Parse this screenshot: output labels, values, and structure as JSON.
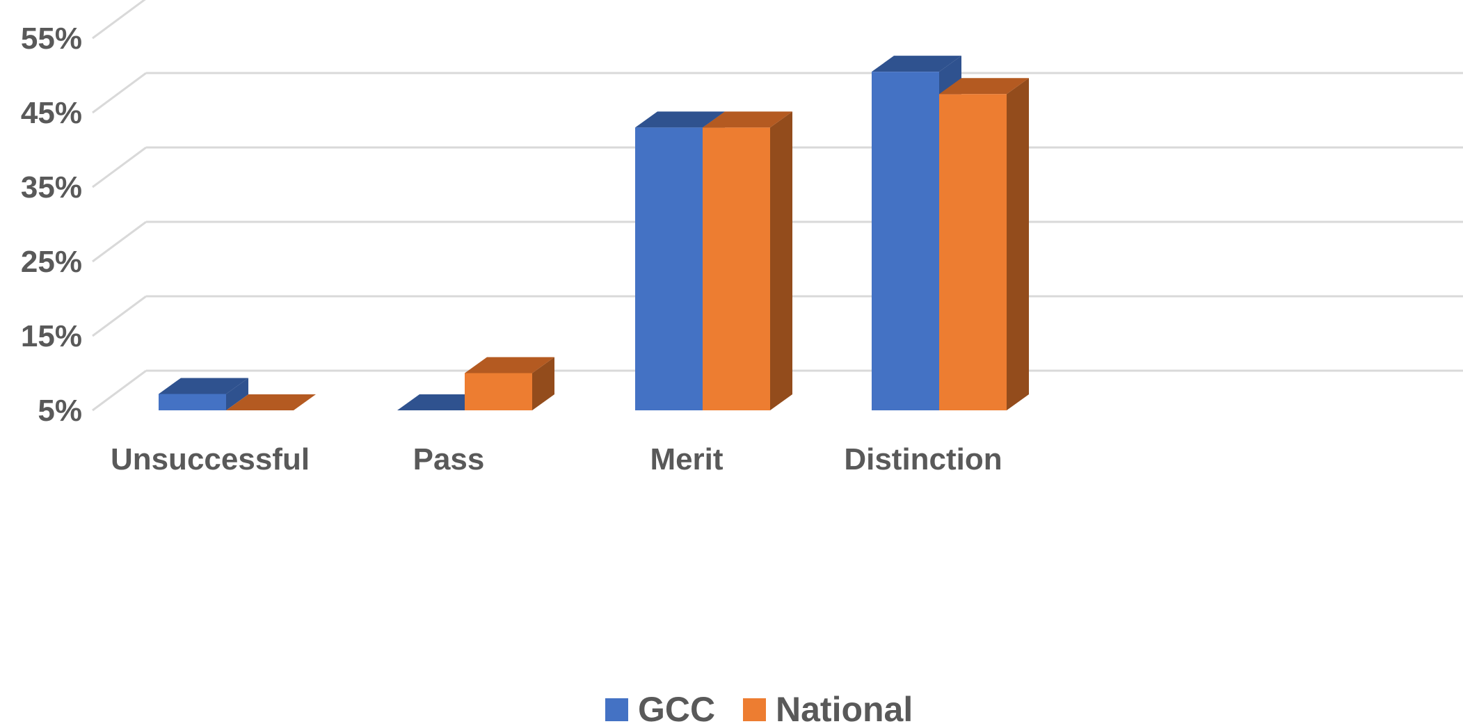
{
  "chart_data": {
    "type": "bar",
    "three_d": true,
    "categories": [
      "Unsuccessful",
      "Pass",
      "Merit",
      "Distinction"
    ],
    "series": [
      {
        "name": "GCC",
        "values": [
          7.2,
          5.0,
          43.0,
          50.5
        ],
        "color": "#4472C4",
        "top_color": "#2F528F",
        "side_color": "#2F528F"
      },
      {
        "name": "National",
        "values": [
          5.0,
          10.0,
          43.0,
          47.5
        ],
        "color": "#ED7D31",
        "top_color": "#B45A21",
        "side_color": "#934C1C"
      }
    ],
    "yticks": [
      "5%",
      "15%",
      "25%",
      "35%",
      "45%",
      "55%"
    ],
    "ylim": [
      5,
      58
    ],
    "grid": true,
    "legend_position": "bottom",
    "colors": {
      "grid": "#D9D9D9",
      "text": "#595959"
    }
  }
}
